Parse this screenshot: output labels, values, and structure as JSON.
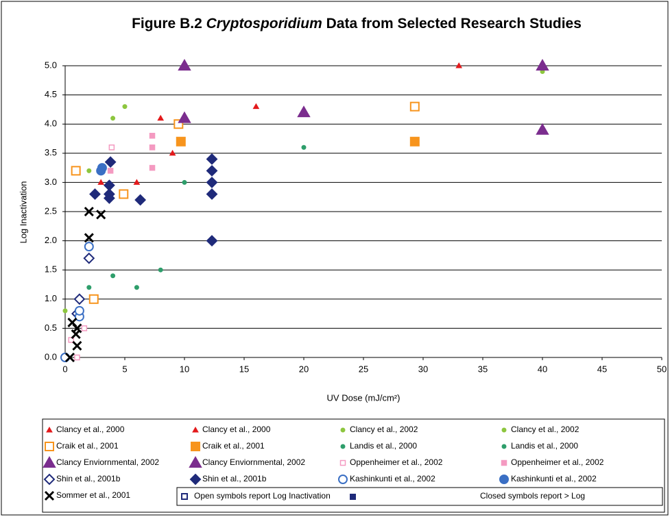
{
  "chart_data": {
    "type": "scatter",
    "title_prefix": "Figure B.2",
    "title_italic": "Cryptosporidium",
    "title_suffix": "Data from Selected Research Studies",
    "x_label": "UV Dose (mJ/cm²)",
    "y_label": "Log Inactivation",
    "xlim": [
      0,
      50
    ],
    "ylim": [
      0,
      5
    ],
    "xticks": [
      0,
      5,
      10,
      15,
      20,
      25,
      30,
      35,
      40,
      45,
      50
    ],
    "yticks": [
      {
        "value": 0,
        "label": "0.0"
      },
      {
        "value": 0.5,
        "label": "0.5"
      },
      {
        "value": 1,
        "label": "1.0"
      },
      {
        "value": 1.5,
        "label": "1.5"
      },
      {
        "value": 2,
        "label": "2.0"
      },
      {
        "value": 2.5,
        "label": "2.5"
      },
      {
        "value": 3,
        "label": "3.0"
      },
      {
        "value": 3.5,
        "label": "3.5"
      },
      {
        "value": 4,
        "label": "4.0"
      },
      {
        "value": 4.5,
        "label": "4.5"
      },
      {
        "value": 5,
        "label": "5.0"
      }
    ],
    "grid": true,
    "series": [
      {
        "name": "Clancy et al., 2000",
        "color": "#e31a1c",
        "marker": "triangle-small",
        "filled": true,
        "x": [
          3,
          6,
          9
        ],
        "values": [
          3.0,
          3.0,
          3.5
        ]
      },
      {
        "name": "Clancy et al., 2000",
        "color": "#e31a1c",
        "marker": "triangle-small",
        "filled": true,
        "x": [
          8,
          16,
          33
        ],
        "values": [
          4.1,
          4.3,
          5.0
        ]
      },
      {
        "name": "Clancy et al., 2002",
        "color": "#8dc63f",
        "marker": "dot",
        "filled": true,
        "x": [
          0,
          2,
          4
        ],
        "values": [
          0.8,
          3.2,
          4.1
        ]
      },
      {
        "name": "Clancy et al., 2002",
        "color": "#8dc63f",
        "marker": "dot",
        "filled": true,
        "x": [
          5,
          40
        ],
        "values": [
          4.3,
          4.9
        ]
      },
      {
        "name": "Craik et al., 2001",
        "color": "#f7941d",
        "marker": "square",
        "filled": false,
        "x": [
          0.9,
          2.4,
          4.9,
          9.5,
          29.3
        ],
        "values": [
          3.2,
          1.0,
          2.8,
          4.0,
          4.3
        ]
      },
      {
        "name": "Craik et al., 2001",
        "color": "#f7941d",
        "marker": "square",
        "filled": true,
        "x": [
          9.7,
          29.3
        ],
        "values": [
          3.7,
          3.7
        ]
      },
      {
        "name": "Landis et al., 2000",
        "color": "#2e9e6b",
        "marker": "dot",
        "filled": true,
        "x": [
          2,
          4,
          6
        ],
        "values": [
          1.2,
          1.4,
          1.2
        ]
      },
      {
        "name": "Landis et al., 2000",
        "color": "#2e9e6b",
        "marker": "dot",
        "filled": true,
        "x": [
          8,
          10,
          20
        ],
        "values": [
          1.5,
          3.0,
          3.6
        ]
      },
      {
        "name": "Clancy Enviornmental, 2002",
        "color": "#7b2d8e",
        "marker": "triangle",
        "filled": true,
        "x": [
          10,
          20
        ],
        "values": [
          4.1,
          4.2
        ]
      },
      {
        "name": "Clancy Enviornmental, 2002",
        "color": "#7b2d8e",
        "marker": "triangle",
        "filled": true,
        "x": [
          10,
          40,
          40
        ],
        "values": [
          5.0,
          5.0,
          3.9
        ]
      },
      {
        "name": "Oppenheimer et al., 2002",
        "color": "#f49ac1",
        "marker": "square-small",
        "filled": false,
        "x": [
          0.5,
          1.0,
          1.6,
          3.9
        ],
        "values": [
          0.3,
          0.0,
          0.5,
          3.6
        ]
      },
      {
        "name": "Oppenheimer et al., 2002",
        "color": "#f49ac1",
        "marker": "square-small",
        "filled": true,
        "x": [
          3.8,
          7.3,
          7.3,
          7.3
        ],
        "values": [
          3.2,
          3.8,
          3.6,
          3.25
        ]
      },
      {
        "name": "Shin et al., 2001b",
        "color": "#1f2a7a",
        "marker": "diamond",
        "filled": false,
        "x": [
          1.2,
          2,
          1.0
        ],
        "values": [
          1.0,
          1.7,
          0.75
        ]
      },
      {
        "name": "Shin et al., 2001b",
        "color": "#1f2a7a",
        "marker": "diamond",
        "filled": true,
        "x": [
          2.5,
          3.7,
          3.7,
          3.7,
          3.8,
          6.3,
          12.3,
          12.3,
          12.3,
          12.3,
          12.3
        ],
        "values": [
          2.8,
          2.73,
          2.8,
          2.95,
          3.35,
          2.7,
          2.0,
          2.8,
          3.0,
          3.2,
          3.4
        ]
      },
      {
        "name": "Kashinkunti et al., 2002",
        "color": "#3a6fc4",
        "marker": "circle",
        "filled": false,
        "x": [
          0,
          1.2,
          1.2,
          2
        ],
        "values": [
          0.0,
          0.7,
          0.8,
          1.9
        ]
      },
      {
        "name": "Kashinkunti et al., 2002",
        "color": "#3a6fc4",
        "marker": "circle",
        "filled": true,
        "x": [
          3,
          3.1
        ],
        "values": [
          3.2,
          3.25
        ]
      },
      {
        "name": "Sommer et al., 2001",
        "color": "#000000",
        "marker": "x",
        "filled": true,
        "x": [
          0.4,
          0.6,
          0.9,
          1.0,
          1.0,
          2,
          2,
          3
        ],
        "values": [
          0.0,
          0.6,
          0.4,
          0.5,
          0.2,
          2.05,
          2.5,
          2.45
        ]
      }
    ],
    "note_open": "Open symbols report Log Inactivation",
    "note_closed": "Closed symbols report > Log"
  }
}
